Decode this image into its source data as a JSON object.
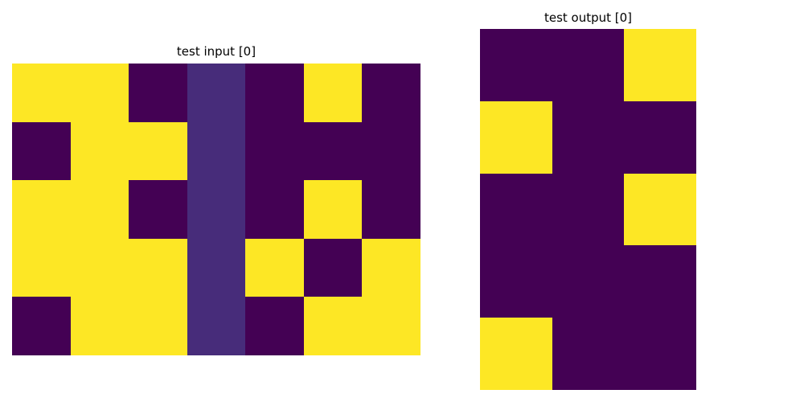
{
  "palette": {
    "0": "#440154",
    "1": "#fde725",
    "5": "#472c7a"
  },
  "input_panel": {
    "title": "test input [0]",
    "grid": [
      [
        1,
        1,
        0,
        5,
        0,
        1,
        0
      ],
      [
        0,
        1,
        1,
        5,
        0,
        0,
        0
      ],
      [
        1,
        1,
        0,
        5,
        0,
        1,
        0
      ],
      [
        1,
        1,
        1,
        5,
        1,
        0,
        1
      ],
      [
        0,
        1,
        1,
        5,
        0,
        1,
        1
      ]
    ]
  },
  "output_panel": {
    "title": "test output [0]",
    "grid": [
      [
        0,
        0,
        1
      ],
      [
        1,
        0,
        0
      ],
      [
        0,
        0,
        1
      ],
      [
        0,
        0,
        0
      ],
      [
        1,
        0,
        0
      ]
    ]
  }
}
